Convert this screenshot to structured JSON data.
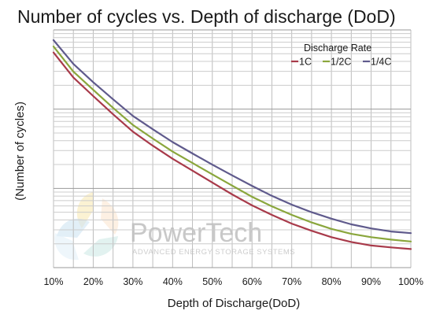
{
  "chart_data": {
    "type": "line",
    "title": "Number of cycles vs. Depth of discharge (DoD)",
    "xlabel": "Depth of Discharge(DoD)",
    "ylabel": "(Number of cycles)",
    "x_unit": "%",
    "xlim": [
      10,
      100
    ],
    "ylim": [
      0,
      1
    ],
    "y_scale": "log",
    "grid": true,
    "categories": [
      "10%",
      "20%",
      "30%",
      "40%",
      "50%",
      "60%",
      "70%",
      "80%",
      "90%",
      "100%"
    ],
    "x": [
      10,
      15,
      20,
      25,
      30,
      35,
      40,
      45,
      50,
      55,
      60,
      65,
      70,
      75,
      80,
      85,
      90,
      95,
      100
    ],
    "legend": {
      "title": "Discharge Rate",
      "position": "top-right"
    },
    "series": [
      {
        "name": "1C",
        "color": "#a83a4a",
        "values": [
          0.905,
          0.8,
          0.722,
          0.645,
          0.572,
          0.513,
          0.458,
          0.408,
          0.358,
          0.308,
          0.262,
          0.222,
          0.185,
          0.155,
          0.128,
          0.108,
          0.093,
          0.085,
          0.078
        ]
      },
      {
        "name": "1/2C",
        "color": "#8aa63c",
        "values": [
          0.93,
          0.825,
          0.748,
          0.672,
          0.6,
          0.543,
          0.488,
          0.44,
          0.392,
          0.345,
          0.298,
          0.258,
          0.222,
          0.19,
          0.163,
          0.142,
          0.128,
          0.118,
          0.11
        ]
      },
      {
        "name": "1/4C",
        "color": "#5f5a8c",
        "values": [
          0.957,
          0.857,
          0.78,
          0.708,
          0.638,
          0.582,
          0.528,
          0.48,
          0.433,
          0.388,
          0.344,
          0.302,
          0.265,
          0.233,
          0.206,
          0.182,
          0.165,
          0.152,
          0.145
        ]
      }
    ]
  },
  "watermark": {
    "brand": "PowerTech",
    "tagline": "ADVANCED ENERGY STORAGE SYSTEMS"
  }
}
